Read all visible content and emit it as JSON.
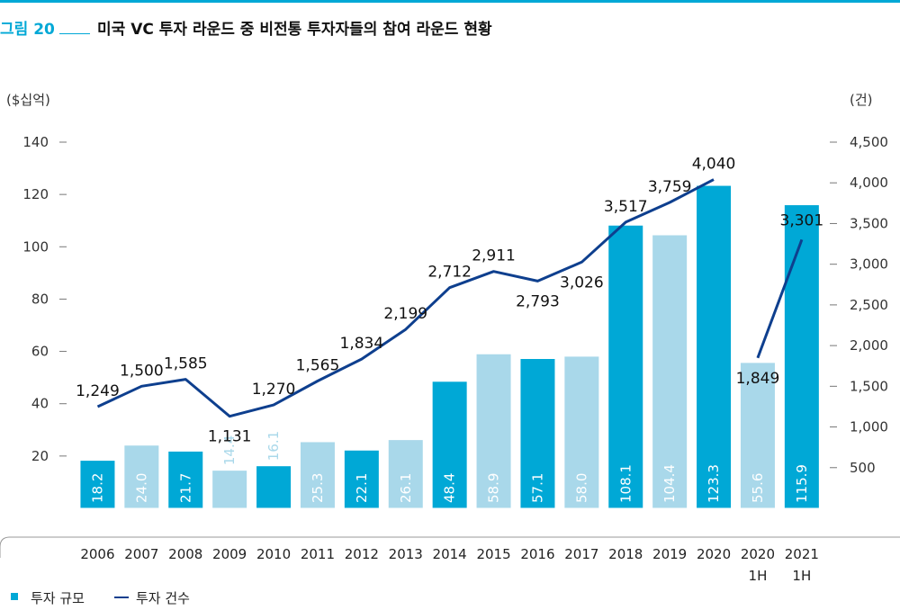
{
  "figure": {
    "label": "그림 20",
    "title": "미국 VC 투자 라운드 중 비전통 투자자들의 참여 라운드 현황"
  },
  "colors": {
    "accent": "#00a8d6",
    "bar_dark": "#00a8d6",
    "bar_light": "#a9d8ea",
    "line": "#0e3f8e"
  },
  "chart_data": {
    "type": "bar",
    "categories": [
      "2006",
      "2007",
      "2008",
      "2009",
      "2010",
      "2011",
      "2012",
      "2013",
      "2014",
      "2015",
      "2016",
      "2017",
      "2018",
      "2019",
      "2020",
      "2020\n1H",
      "2021\n1H"
    ],
    "y_left": {
      "unit": "($십억)",
      "ticks": [
        20,
        40,
        60,
        80,
        100,
        120,
        140
      ],
      "range": [
        0,
        140
      ]
    },
    "y_right": {
      "unit": "(건)",
      "ticks": [
        "500",
        "1,000",
        "1,500",
        "2,000",
        "2,500",
        "3,000",
        "3,500",
        "4,000",
        "4,500"
      ],
      "range": [
        0,
        4500
      ]
    },
    "series": [
      {
        "name": "투자 규모",
        "type": "bar",
        "axis": "left",
        "values": [
          18.2,
          24.0,
          21.7,
          14.4,
          16.1,
          25.3,
          22.1,
          26.1,
          48.4,
          58.9,
          57.1,
          58.0,
          108.1,
          104.4,
          123.3,
          55.6,
          115.9
        ],
        "labels": [
          "18.2",
          "24.0",
          "21.7",
          "14.4",
          "16.1",
          "25.3",
          "22.1",
          "26.1",
          "48.4",
          "58.9",
          "57.1",
          "58.0",
          "108.1",
          "104.4",
          "123.3",
          "55.6",
          "115.9"
        ],
        "shade": [
          "dark",
          "light",
          "dark",
          "light",
          "dark",
          "light",
          "dark",
          "light",
          "dark",
          "light",
          "dark",
          "light",
          "dark",
          "light",
          "dark",
          "light",
          "dark"
        ]
      },
      {
        "name": "투자 건수",
        "type": "line",
        "axis": "right",
        "segments": [
          {
            "from": 0,
            "values": [
              1249,
              1500,
              1585,
              1131,
              1270,
              1565,
              1834,
              2199,
              2712,
              2911,
              2793,
              3026,
              3517,
              3759,
              4040
            ]
          },
          {
            "from": 15,
            "values": [
              1849,
              3301
            ]
          }
        ],
        "labels": [
          "1,249",
          "1,500",
          "1,585",
          "1,131",
          "1,270",
          "1,565",
          "1,834",
          "2,199",
          "2,712",
          "2,911",
          "2,793",
          "3,026",
          "3,517",
          "3,759",
          "4,040",
          "1,849",
          "3,301"
        ]
      }
    ],
    "legend": {
      "position": "bottom-left"
    },
    "grid": false
  },
  "legend_items": [
    {
      "name": "투자 규모"
    },
    {
      "name": "투자 건수"
    }
  ]
}
